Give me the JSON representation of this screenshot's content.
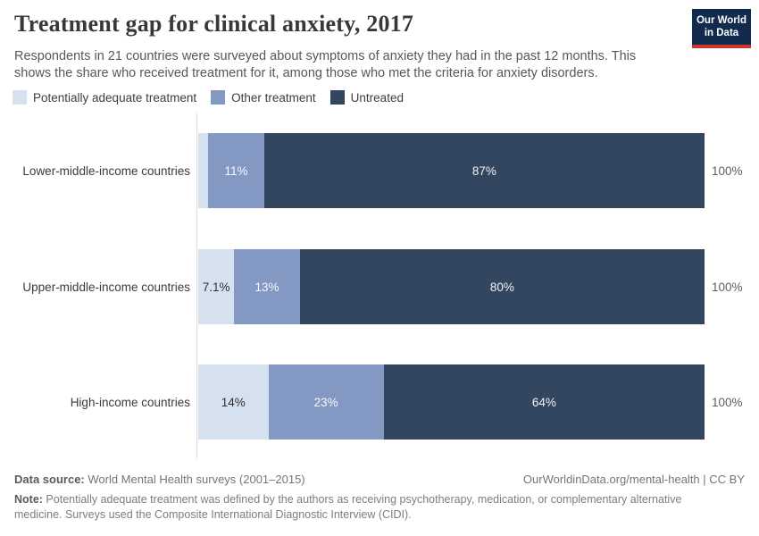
{
  "header": {
    "title": "Treatment gap for clinical anxiety, 2017",
    "subtitle": "Respondents in 21 countries were surveyed about symptoms of anxiety they had in the past 12 months. This shows the share who received treatment for it, among those who met the criteria for anxiety disorders.",
    "logo_line1": "Our World",
    "logo_line2": "in Data"
  },
  "legend": [
    {
      "label": "Potentially adequate treatment",
      "color": "#d6e1f0"
    },
    {
      "label": "Other treatment",
      "color": "#8399c4"
    },
    {
      "label": "Untreated",
      "color": "#33465f"
    }
  ],
  "chart_data": {
    "type": "bar",
    "orientation": "horizontal",
    "stacked": true,
    "title": "Treatment gap for clinical anxiety, 2017",
    "categories": [
      "Lower-middle-income countries",
      "Upper-middle-income countries",
      "High-income countries"
    ],
    "series": [
      {
        "name": "Potentially adequate treatment",
        "color": "#d6e1f0",
        "values": [
          2,
          7.1,
          14
        ],
        "labels": [
          "",
          "7.1%",
          "14%"
        ]
      },
      {
        "name": "Other treatment",
        "color": "#8399c4",
        "values": [
          11,
          13,
          23
        ],
        "labels": [
          "11%",
          "13%",
          "23%"
        ]
      },
      {
        "name": "Untreated",
        "color": "#33465f",
        "values": [
          87,
          80,
          64
        ],
        "labels": [
          "87%",
          "80%",
          "64%"
        ]
      }
    ],
    "totals": [
      "100%",
      "100%",
      "100%"
    ],
    "xlim": [
      0,
      100
    ],
    "legend_position": "top",
    "grid": false
  },
  "footer": {
    "data_source_label": "Data source:",
    "data_source": " World Mental Health surveys (2001–2015)",
    "link": "OurWorldinData.org/mental-health | CC BY",
    "note_label": "Note:",
    "note": " Potentially adequate treatment was defined by the authors as receiving psychotherapy, medication, or complementary alternative medicine. Surveys used the Composite International Diagnostic Interview (CIDI)."
  }
}
